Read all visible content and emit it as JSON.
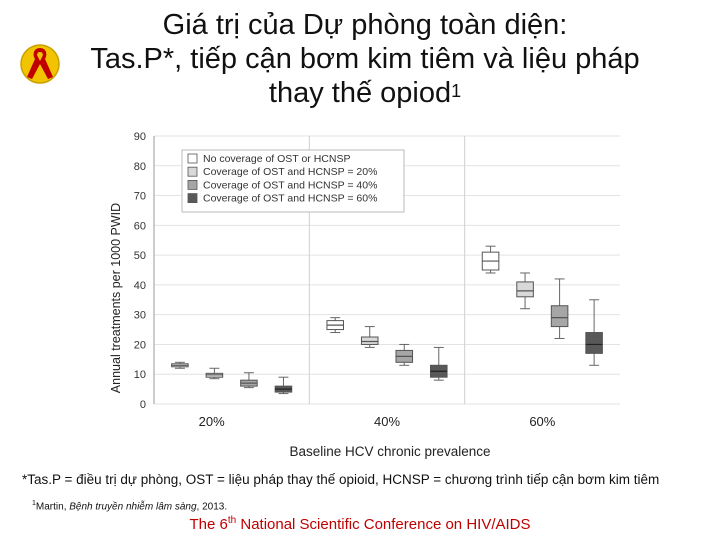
{
  "slide": {
    "title_line1": "Giá trị của Dự phòng toàn diện:",
    "title_line2": "Tas.P*, tiếp cận bơm kim tiêm và liệu pháp",
    "title_line3": "thay thế opiod",
    "title_sup": "1",
    "footnote": "*Tas.P = điều trị dự phòng, OST = liệu pháp thay thế opioid, HCNSP = chương trình tiếp cận bơm kim tiêm",
    "citation_sup": "1",
    "citation_author": "Martin, ",
    "citation_journal": "Bệnh truyền nhiễm lâm sàng",
    "citation_year": ", 2013.",
    "conference_pre": "The 6",
    "conference_sup": "th",
    "conference_post": " National Scientific Conference on HIV/AIDS",
    "logo_icon": "red-ribbon-icon",
    "accent_color": "#c00000"
  },
  "chart_data": {
    "type": "boxplot",
    "xlabel": "Baseline HCV chronic prevalence",
    "ylabel": "Annual treatments per 1000 PWID",
    "ylim": [
      0,
      90
    ],
    "yticks": [
      0,
      10,
      20,
      30,
      40,
      50,
      60,
      70,
      80,
      90
    ],
    "grid": true,
    "legend_position": "top-left",
    "categories": [
      "20%",
      "40%",
      "60%"
    ],
    "series": [
      {
        "name": "No coverage of OST or HCNSP",
        "color": "#ffffff",
        "values": [
          {
            "min": 12,
            "q1": 12.5,
            "median": 13,
            "q3": 13.5,
            "max": 14
          },
          {
            "min": 24,
            "q1": 25,
            "median": 26.5,
            "q3": 28,
            "max": 29
          },
          {
            "min": 44,
            "q1": 45,
            "median": 48,
            "q3": 51,
            "max": 53
          }
        ]
      },
      {
        "name": "Coverage of OST and HCNSP = 20%",
        "color": "#d9d9d9",
        "values": [
          {
            "min": 8.5,
            "q1": 9,
            "median": 9.8,
            "q3": 10.3,
            "max": 12
          },
          {
            "min": 19,
            "q1": 20,
            "median": 21,
            "q3": 22.5,
            "max": 26
          },
          {
            "min": 32,
            "q1": 36,
            "median": 38,
            "q3": 41,
            "max": 44
          }
        ]
      },
      {
        "name": "Coverage of OST and HCNSP = 40%",
        "color": "#a6a6a6",
        "values": [
          {
            "min": 5.5,
            "q1": 6,
            "median": 7,
            "q3": 8,
            "max": 10.5
          },
          {
            "min": 13,
            "q1": 14,
            "median": 16,
            "q3": 18,
            "max": 20
          },
          {
            "min": 22,
            "q1": 26,
            "median": 29,
            "q3": 33,
            "max": 42
          }
        ]
      },
      {
        "name": "Coverage of OST and HCNSP = 60%",
        "color": "#595959",
        "values": [
          {
            "min": 3.5,
            "q1": 4,
            "median": 5,
            "q3": 6,
            "max": 9
          },
          {
            "min": 8,
            "q1": 9,
            "median": 11,
            "q3": 13,
            "max": 19
          },
          {
            "min": 13,
            "q1": 17,
            "median": 20,
            "q3": 24,
            "max": 35
          }
        ]
      }
    ]
  }
}
